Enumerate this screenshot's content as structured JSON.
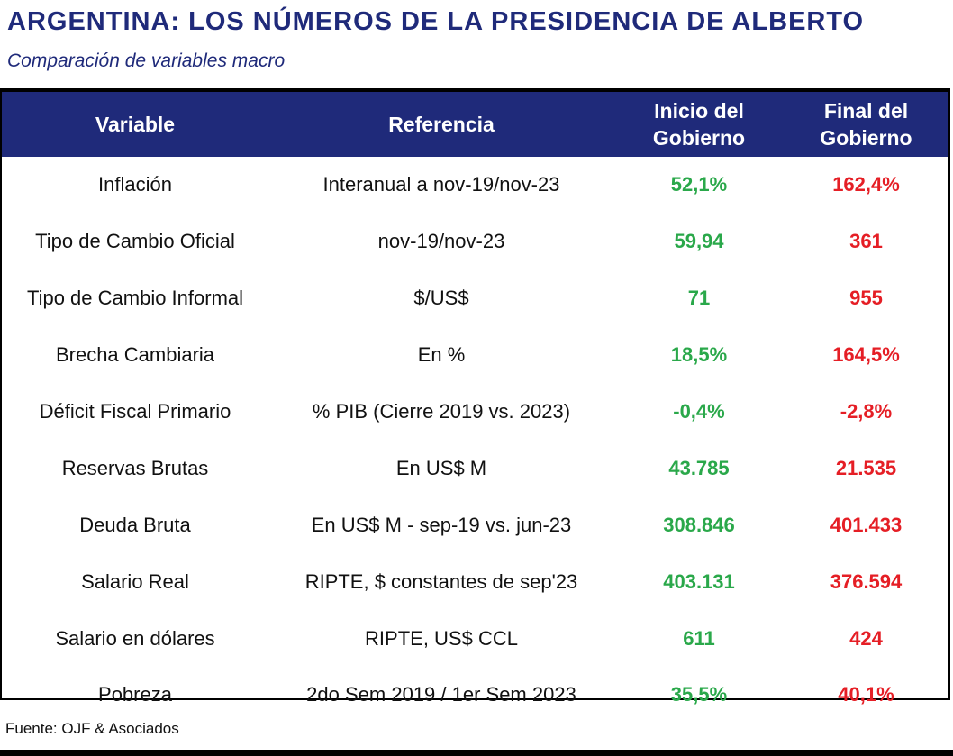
{
  "header": {
    "title": "ARGENTINA: LOS NÚMEROS DE LA PRESIDENCIA DE ALBERTO",
    "subtitle": "Comparación de variables macro"
  },
  "table": {
    "headers": {
      "variable": "Variable",
      "referencia": "Referencia",
      "inicio_line1": "Inicio del",
      "inicio_line2": "Gobierno",
      "final_line1": "Final del",
      "final_line2": "Gobierno"
    },
    "rows": [
      {
        "variable": "Inflación",
        "referencia": "Interanual a nov-19/nov-23",
        "inicio": "52,1%",
        "final": "162,4%"
      },
      {
        "variable": "Tipo de Cambio Oficial",
        "referencia": "nov-19/nov-23",
        "inicio": "59,94",
        "final": "361"
      },
      {
        "variable": "Tipo de Cambio Informal",
        "referencia": "$/US$",
        "inicio": "71",
        "final": "955"
      },
      {
        "variable": "Brecha Cambiaria",
        "referencia": "En %",
        "inicio": "18,5%",
        "final": "164,5%"
      },
      {
        "variable": "Déficit Fiscal Primario",
        "referencia": "% PIB (Cierre 2019 vs. 2023)",
        "inicio": "-0,4%",
        "final": "-2,8%"
      },
      {
        "variable": "Reservas Brutas",
        "referencia": "En US$ M",
        "inicio": "43.785",
        "final": "21.535"
      },
      {
        "variable": "Deuda Bruta",
        "referencia": "En US$ M - sep-19 vs. jun-23",
        "inicio": "308.846",
        "final": "401.433"
      },
      {
        "variable": "Salario Real",
        "referencia": "RIPTE, $ constantes de sep'23",
        "inicio": "403.131",
        "final": "376.594"
      },
      {
        "variable": "Salario en dólares",
        "referencia": "RIPTE, US$ CCL",
        "inicio": "611",
        "final": "424"
      },
      {
        "variable": "Pobreza",
        "referencia": "2do Sem 2019 / 1er Sem 2023",
        "inicio": "35,5%",
        "final": "40,1%"
      }
    ]
  },
  "footer": {
    "source": "Fuente: OJF & Asociados"
  },
  "colors": {
    "header_bg": "#1f2a7a",
    "inicio": "#2aa84a",
    "final": "#e51e25"
  }
}
